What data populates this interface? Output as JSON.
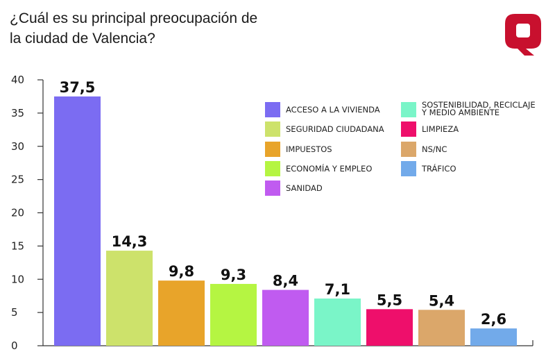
{
  "title": {
    "line1": "¿Cuál es su principal preocupación de",
    "line2": "la ciudad de Valencia?"
  },
  "logo": {
    "letter": "Q",
    "color": "#c8102e"
  },
  "chart_data": {
    "type": "bar",
    "categories": [
      "ACCESO A LA VIVIENDA",
      "SEGURIDAD CIUDADANA",
      "IMPUESTOS",
      "ECONOMÍA Y EMPLEO",
      "SANIDAD",
      "SOSTENIBILIDAD, RECICLAJE Y MEDIO AMBIENTE",
      "LIMPIEZA",
      "NS/NC",
      "TRÁFICO"
    ],
    "values": [
      37.5,
      14.3,
      9.8,
      9.3,
      8.4,
      7.1,
      5.5,
      5.4,
      2.6
    ],
    "value_labels": [
      "37,5",
      "14,3",
      "9,8",
      "9,3",
      "8,4",
      "7,1",
      "5,5",
      "5,4",
      "2,6"
    ],
    "colors": [
      "#7b6cf2",
      "#cde26b",
      "#e8a42a",
      "#b5f542",
      "#c05bf0",
      "#7af5c8",
      "#ee0f6b",
      "#dba76a",
      "#72aaea"
    ],
    "legend": {
      "left": [
        "ACCESO A LA VIVIENDA",
        "SEGURIDAD CIUDADANA",
        "IMPUESTOS",
        "ECONOMÍA Y EMPLEO",
        "SANIDAD"
      ],
      "right": [
        [
          "SOSTENIBILIDAD, RECICLAJE",
          "Y MEDIO AMBIENTE"
        ],
        [
          "LIMPIEZA"
        ],
        [
          "NS/NC"
        ],
        [
          "TRÁFICO"
        ]
      ],
      "placement": "top-right"
    },
    "ylim": [
      0,
      40
    ],
    "yticks": [
      0,
      5,
      10,
      15,
      20,
      25,
      30,
      35,
      40
    ],
    "grid": false,
    "title": "¿Cuál es su principal preocupación de la ciudad de Valencia?",
    "xlabel": "",
    "ylabel": ""
  }
}
